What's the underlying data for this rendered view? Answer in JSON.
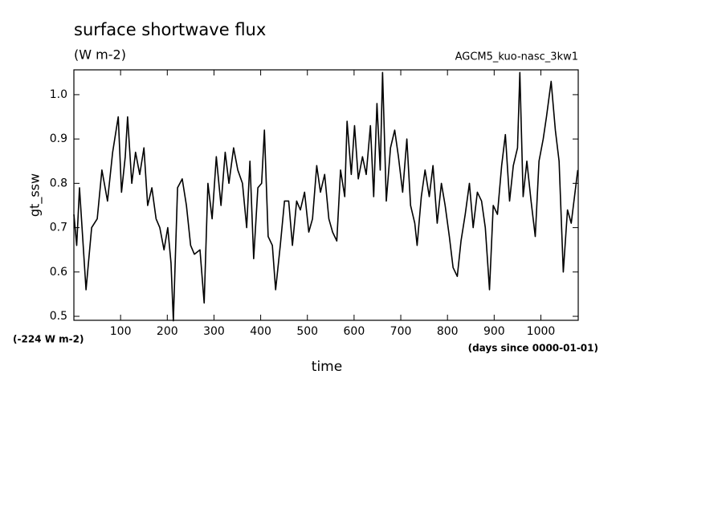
{
  "chart_data": {
    "type": "line",
    "title": "surface shortwave flux",
    "subtitle": "(W m-2)",
    "annotation_right": "AGCM5_kuo-nasc_3kw1",
    "annotation_offset": "(-224 W m-2)",
    "annotation_units": "(days since 0000-01-01)",
    "xlabel": "time",
    "ylabel": "gt_ssw",
    "color": "#000000",
    "xlim": [
      0,
      1080
    ],
    "ylim": [
      0.491,
      1.056
    ],
    "xticks": [
      100,
      200,
      300,
      400,
      500,
      600,
      700,
      800,
      900,
      1000
    ],
    "yticks": [
      0.5,
      0.6,
      0.7,
      0.8,
      0.9,
      {
        "value": 1,
        "label": "1.0"
      }
    ],
    "x": [
      0,
      6,
      12,
      26,
      38,
      50,
      60,
      72,
      83,
      95,
      102,
      110,
      115,
      124,
      132,
      141,
      150,
      158,
      167,
      176,
      184,
      193,
      201,
      208,
      213,
      222,
      232,
      241,
      250,
      258,
      270,
      279,
      287,
      296,
      305,
      315,
      324,
      332,
      342,
      351,
      361,
      370,
      377,
      385,
      394,
      402,
      408,
      416,
      425,
      432,
      442,
      451,
      460,
      468,
      477,
      485,
      494,
      503,
      511,
      520,
      528,
      537,
      546,
      554,
      563,
      571,
      580,
      585,
      594,
      601,
      609,
      618,
      626,
      635,
      642,
      649,
      656,
      661,
      669,
      678,
      687,
      695,
      704,
      713,
      721,
      730,
      735,
      744,
      752,
      761,
      769,
      778,
      787,
      795,
      804,
      812,
      821,
      829,
      838,
      847,
      855,
      864,
      873,
      881,
      890,
      898,
      907,
      916,
      924,
      933,
      941,
      950,
      955,
      962,
      970,
      979,
      988,
      996,
      1005,
      1012,
      1022,
      1031,
      1039,
      1048,
      1057,
      1065,
      1072,
      1079
    ],
    "values": [
      0.73,
      0.66,
      0.79,
      0.56,
      0.7,
      0.72,
      0.83,
      0.76,
      0.87,
      0.95,
      0.78,
      0.86,
      0.95,
      0.8,
      0.87,
      0.82,
      0.88,
      0.75,
      0.79,
      0.72,
      0.7,
      0.65,
      0.7,
      0.62,
      0.49,
      0.79,
      0.81,
      0.75,
      0.66,
      0.64,
      0.65,
      0.53,
      0.8,
      0.72,
      0.86,
      0.75,
      0.87,
      0.8,
      0.88,
      0.83,
      0.8,
      0.7,
      0.85,
      0.63,
      0.79,
      0.8,
      0.92,
      0.68,
      0.66,
      0.56,
      0.66,
      0.76,
      0.76,
      0.66,
      0.76,
      0.74,
      0.78,
      0.69,
      0.72,
      0.84,
      0.78,
      0.82,
      0.72,
      0.69,
      0.67,
      0.83,
      0.77,
      0.94,
      0.82,
      0.93,
      0.81,
      0.86,
      0.82,
      0.93,
      0.77,
      0.98,
      0.83,
      1.05,
      0.76,
      0.88,
      0.92,
      0.86,
      0.78,
      0.9,
      0.75,
      0.71,
      0.66,
      0.77,
      0.83,
      0.77,
      0.84,
      0.71,
      0.8,
      0.75,
      0.68,
      0.61,
      0.59,
      0.67,
      0.73,
      0.8,
      0.7,
      0.78,
      0.76,
      0.7,
      0.56,
      0.75,
      0.73,
      0.84,
      0.91,
      0.76,
      0.84,
      0.88,
      1.05,
      0.77,
      0.85,
      0.76,
      0.68,
      0.85,
      0.9,
      0.95,
      1.03,
      0.92,
      0.85,
      0.6,
      0.74,
      0.71,
      0.77,
      0.83
    ]
  }
}
